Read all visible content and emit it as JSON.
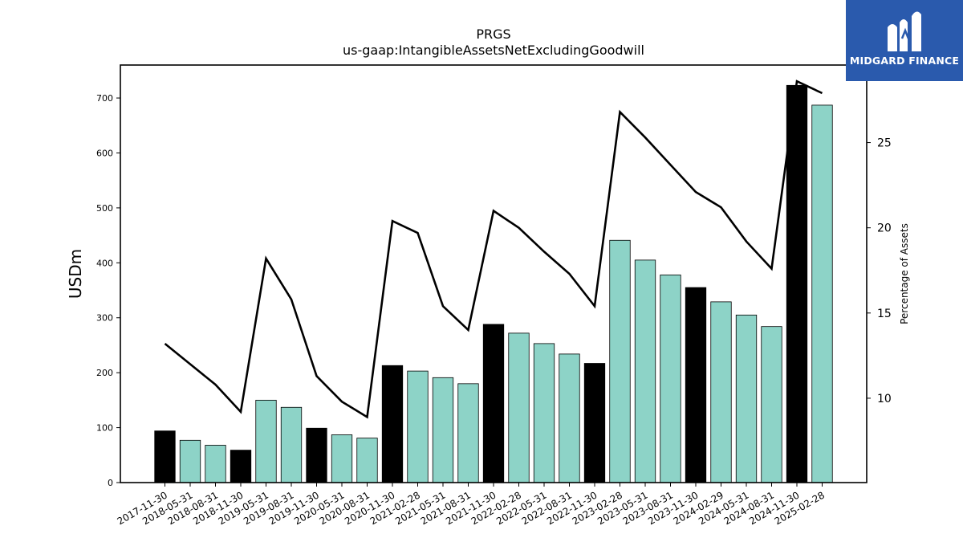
{
  "chart_data": {
    "type": "bar",
    "title": "PRGS",
    "subtitle": "us-gaap:IntangibleAssetsNetExcludingGoodwill",
    "ylabel": "USDm",
    "y2label": "Percentage of Assets",
    "ylim": [
      0,
      760
    ],
    "y2lim": [
      5.05,
      29.55
    ],
    "yticks": [
      0,
      100,
      200,
      300,
      400,
      500,
      600,
      700
    ],
    "y2ticks": [
      10,
      15,
      20,
      25
    ],
    "grid": false,
    "categories": [
      "2017-11-30",
      "2018-05-31",
      "2018-08-31",
      "2018-11-30",
      "2019-05-31",
      "2019-08-31",
      "2019-11-30",
      "2020-05-31",
      "2020-08-31",
      "2020-11-30",
      "2021-02-28",
      "2021-05-31",
      "2021-08-31",
      "2021-11-30",
      "2022-02-28",
      "2022-05-31",
      "2022-08-31",
      "2022-11-30",
      "2023-02-28",
      "2023-05-31",
      "2023-08-31",
      "2023-11-30",
      "2024-02-29",
      "2024-05-31",
      "2024-08-31",
      "2024-11-30",
      "2025-02-28"
    ],
    "values": [
      94,
      77,
      68,
      59,
      150,
      137,
      99,
      87,
      81,
      213,
      203,
      191,
      180,
      288,
      272,
      253,
      234,
      217,
      441,
      405,
      378,
      355,
      329,
      305,
      284,
      723,
      687
    ],
    "fiscal_year_end": [
      true,
      false,
      false,
      true,
      false,
      false,
      true,
      false,
      false,
      true,
      false,
      false,
      false,
      true,
      false,
      false,
      false,
      true,
      false,
      false,
      false,
      true,
      false,
      false,
      false,
      true,
      false
    ],
    "line_series": {
      "axis": "right",
      "values": [
        13.2,
        12.0,
        10.8,
        9.2,
        18.2,
        15.8,
        11.3,
        9.8,
        8.9,
        20.4,
        19.7,
        15.4,
        14.0,
        21.0,
        20.0,
        18.6,
        17.3,
        15.4,
        26.8,
        25.3,
        23.7,
        22.1,
        21.2,
        19.2,
        17.6,
        28.6,
        27.9
      ]
    },
    "colors": {
      "bar_fye": "#000000",
      "bar_other": "#8dd3c7",
      "line": "#000000"
    }
  },
  "logo": {
    "text": "MIDGARD FINANCE",
    "background": "#2a5aad"
  }
}
